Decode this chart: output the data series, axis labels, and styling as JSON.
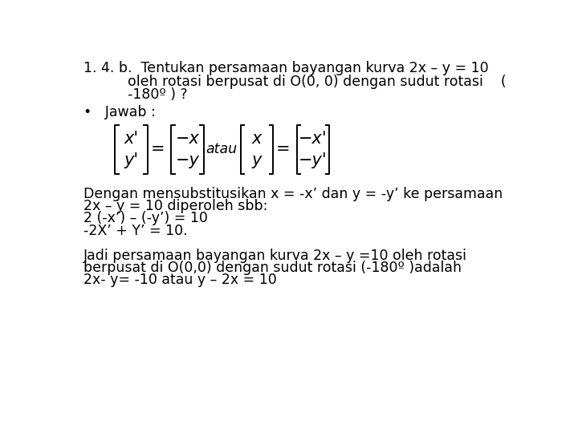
{
  "bg_color": "#ffffff",
  "title_line1": "1. 4. b.  Tentukan persamaan bayangan kurva 2x – y = 10",
  "title_line2": "          oleh rotasi berpusat di O(0, 0) dengan sudut rotasi    (",
  "title_line3": "          -180º ) ?",
  "jawab_label": "•   Jawab :",
  "body_lines": [
    "Dengan mensubstitusikan x = -x’ dan y = -y’ ke persamaan",
    "2x – y = 10 diperoleh sbb:",
    "2 (-x’) – (-y’) = 10",
    "-2X’ + Y’ = 10."
  ],
  "conclusion_lines": [
    "Jadi persamaan bayangan kurva 2x – y =10 oleh rotasi",
    "berpusat di O(0,0) dengan sudut rotasi (-180º )adalah",
    "2x- y= -10 atau y – 2x = 10"
  ],
  "mat_fs": 15,
  "font_size": 12.5,
  "font_family": "DejaVu Sans"
}
